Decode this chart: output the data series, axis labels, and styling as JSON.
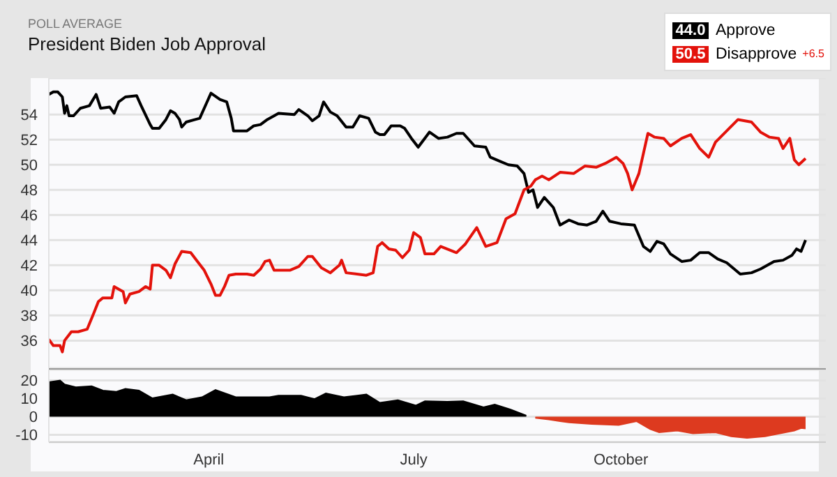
{
  "chart_data": [
    {
      "type": "line",
      "title": "President Biden Job Approval",
      "subtitle": "POLL AVERAGE",
      "legend": "top right",
      "grid": "y",
      "tick_labels": "y",
      "xlim": [
        "--01-20",
        "--12-31"
      ],
      "ylim": [
        33.8,
        56.9
      ],
      "yticks": [
        36,
        38,
        40,
        42,
        44,
        46,
        48,
        50,
        52,
        54
      ],
      "annotations": [
        "44.0",
        "50.5",
        "+6.5"
      ],
      "series": [
        {
          "name": "Approve",
          "color": "#000000",
          "x": [
            "--01-20",
            "--01-22",
            "--01-24",
            "--01-26",
            "--01-27",
            "--01-28",
            "--01-29",
            "--01-31",
            "--02-03",
            "--02-07",
            "--02-10",
            "--02-12",
            "--02-16",
            "--02-18",
            "--02-20",
            "--02-23",
            "--02-28",
            "--03-02",
            "--03-06",
            "--03-07",
            "--03-10",
            "--03-13",
            "--03-15",
            "--03-17",
            "--03-19",
            "--03-20",
            "--03-22",
            "--03-26",
            "--03-28",
            "--03-31",
            "--04-02",
            "--04-06",
            "--04-09",
            "--04-11",
            "--04-12",
            "--04-18",
            "--04-21",
            "--04-24",
            "--04-27",
            "--05-02",
            "--05-09",
            "--05-11",
            "--05-15",
            "--05-17",
            "--05-20",
            "--05-22",
            "--05-25",
            "--05-28",
            "--06-01",
            "--06-04",
            "--06-07",
            "--06-11",
            "--06-14",
            "--06-16",
            "--06-18",
            "--06-21",
            "--06-25",
            "--06-27",
            "--06-30",
            "--07-03",
            "--07-08",
            "--07-12",
            "--07-16",
            "--07-20",
            "--07-23",
            "--07-28",
            "--08-02",
            "--08-04",
            "--08-08",
            "--08-12",
            "--08-16",
            "--08-19",
            "--08-21",
            "--08-23",
            "--08-25",
            "--08-28",
            "--09-01",
            "--09-04",
            "--09-08",
            "--09-12",
            "--09-16",
            "--09-20",
            "--09-23",
            "--09-26",
            "--10-01",
            "--10-07",
            "--10-11",
            "--10-14",
            "--10-17",
            "--10-20",
            "--10-23",
            "--10-28",
            "--11-01",
            "--11-05",
            "--11-09",
            "--11-13",
            "--11-17",
            "--11-23",
            "--11-28",
            "--12-02",
            "--12-08",
            "--12-12",
            "--12-16",
            "--12-18",
            "--12-20",
            "--12-22"
          ],
          "values": [
            55.6,
            55.8,
            55.8,
            55.4,
            54.1,
            54.7,
            53.9,
            53.9,
            54.5,
            54.7,
            55.6,
            54.5,
            54.6,
            54.1,
            55.0,
            55.4,
            55.5,
            54.7,
            53.2,
            52.9,
            52.9,
            53.6,
            54.3,
            54.1,
            53.6,
            53.0,
            53.4,
            53.6,
            53.7,
            54.9,
            55.7,
            55.2,
            55.0,
            53.7,
            52.7,
            52.7,
            53.1,
            53.2,
            53.6,
            54.1,
            54.0,
            54.4,
            53.9,
            53.5,
            53.9,
            55.0,
            54.2,
            53.9,
            53.0,
            53.0,
            53.9,
            53.7,
            52.6,
            52.4,
            52.4,
            53.1,
            53.1,
            52.9,
            52.1,
            51.4,
            52.6,
            52.1,
            52.2,
            52.5,
            52.5,
            51.5,
            51.4,
            50.6,
            50.3,
            50.0,
            49.9,
            49.3,
            47.8,
            48.0,
            46.6,
            47.4,
            46.6,
            45.2,
            45.6,
            45.3,
            45.2,
            45.5,
            46.3,
            45.5,
            45.3,
            45.2,
            43.5,
            43.1,
            43.9,
            43.7,
            42.9,
            42.3,
            42.4,
            43.0,
            43.0,
            42.5,
            42.2,
            41.3,
            41.4,
            41.7,
            42.3,
            42.4,
            42.8,
            43.3,
            43.1,
            44.0
          ]
        },
        {
          "name": "Disapprove",
          "color": "#e3120b",
          "x": [
            "--01-20",
            "--01-22",
            "--01-25",
            "--01-26",
            "--01-27",
            "--01-30",
            "--02-02",
            "--02-06",
            "--02-09",
            "--02-11",
            "--02-13",
            "--02-17",
            "--02-18",
            "--02-22",
            "--02-23",
            "--02-25",
            "--03-01",
            "--03-04",
            "--03-06",
            "--03-07",
            "--03-10",
            "--03-13",
            "--03-15",
            "--03-17",
            "--03-20",
            "--03-24",
            "--03-27",
            "--03-30",
            "--04-02",
            "--04-04",
            "--04-06",
            "--04-08",
            "--04-10",
            "--04-13",
            "--04-18",
            "--04-21",
            "--04-24",
            "--04-26",
            "--04-28",
            "--04-30",
            "--05-07",
            "--05-11",
            "--05-15",
            "--05-17",
            "--05-21",
            "--05-25",
            "--05-29",
            "--05-30",
            "--06-01",
            "--06-10",
            "--06-13",
            "--06-15",
            "--06-17",
            "--06-20",
            "--06-23",
            "--06-26",
            "--06-29",
            "--07-01",
            "--07-04",
            "--07-06",
            "--07-10",
            "--07-13",
            "--07-20",
            "--07-24",
            "--07-29",
            "--08-02",
            "--08-07",
            "--08-11",
            "--08-15",
            "--08-19",
            "--08-22",
            "--08-24",
            "--08-27",
            "--08-30",
            "--09-04",
            "--09-10",
            "--09-15",
            "--09-20",
            "--09-24",
            "--09-29",
            "--10-02",
            "--10-04",
            "--10-06",
            "--10-09",
            "--10-13",
            "--10-16",
            "--10-20",
            "--10-23",
            "--10-28",
            "--11-01",
            "--11-05",
            "--11-09",
            "--11-12",
            "--11-17",
            "--11-22",
            "--11-28",
            "--12-02",
            "--12-06",
            "--12-10",
            "--12-12",
            "--12-15",
            "--12-17",
            "--12-19",
            "--12-22"
          ],
          "values": [
            36.1,
            35.6,
            35.6,
            35.1,
            36.0,
            36.7,
            36.7,
            36.9,
            38.2,
            39.1,
            39.4,
            39.4,
            40.3,
            39.9,
            39.0,
            39.7,
            39.9,
            40.3,
            40.1,
            42.0,
            42.0,
            41.6,
            41.0,
            42.1,
            43.1,
            43.0,
            42.3,
            41.6,
            40.5,
            39.6,
            39.6,
            40.3,
            41.2,
            41.3,
            41.3,
            41.2,
            41.7,
            42.3,
            42.4,
            41.6,
            41.6,
            41.9,
            42.7,
            42.7,
            41.8,
            41.4,
            42.0,
            42.4,
            41.4,
            41.2,
            41.4,
            43.5,
            43.8,
            43.3,
            43.2,
            42.6,
            43.2,
            44.6,
            44.2,
            42.9,
            42.9,
            43.5,
            43.0,
            43.7,
            45.0,
            43.5,
            43.8,
            45.7,
            46.1,
            48.0,
            48.3,
            48.8,
            49.1,
            48.8,
            49.4,
            49.3,
            49.9,
            49.8,
            50.1,
            50.6,
            50.1,
            49.3,
            48.0,
            49.3,
            52.5,
            52.2,
            52.1,
            51.5,
            52.1,
            52.4,
            51.3,
            50.6,
            51.8,
            52.7,
            53.6,
            53.4,
            52.6,
            52.2,
            52.1,
            51.3,
            52.1,
            50.4,
            50.0,
            50.5
          ]
        }
      ]
    },
    {
      "type": "area",
      "grid": "y",
      "xlim": [
        "--01-20",
        "--12-31"
      ],
      "ylim": [
        -14,
        26
      ],
      "yticks": [
        -10,
        0,
        10,
        20
      ],
      "xticks": [
        {
          "value": "--04-01",
          "label": "April"
        },
        {
          "value": "--07-01",
          "label": "July"
        },
        {
          "value": "--10-01",
          "label": "October"
        }
      ],
      "series": [
        {
          "color": "#000000",
          "x": [
            "--01-20",
            "--01-25",
            "--01-27",
            "--02-01",
            "--02-08",
            "--02-13",
            "--02-19",
            "--02-23",
            "--03-01",
            "--03-07",
            "--03-16",
            "--03-22",
            "--03-29",
            "--04-04",
            "--04-13",
            "--04-28",
            "--05-02",
            "--05-12",
            "--05-18",
            "--05-23",
            "--05-31",
            "--06-10",
            "--06-16",
            "--06-24",
            "--07-02",
            "--07-06",
            "--07-16",
            "--07-23",
            "--08-01",
            "--08-06",
            "--08-13",
            "--08-20"
          ],
          "values": [
            19.1,
            20,
            17.8,
            16.3,
            16.9,
            14.5,
            13.8,
            15.4,
            14.5,
            10.2,
            12.3,
            9.2,
            10.8,
            14.8,
            10.8,
            10.8,
            11.7,
            11.7,
            9.8,
            12.9,
            10.8,
            12.3,
            7.7,
            9.2,
            6.2,
            8.6,
            8.3,
            8.6,
            5.2,
            6.8,
            4.0,
            0.6
          ]
        },
        {
          "color": "#dd3a1f",
          "x": [
            "--08-24",
            "--08-30",
            "--09-04",
            "--09-08",
            "--09-18",
            "--09-30",
            "--10-08",
            "--10-14",
            "--10-18",
            "--10-26",
            "--11-02",
            "--11-12",
            "--11-19",
            "--11-26",
            "--12-04",
            "--12-13",
            "--12-17",
            "--12-20",
            "--12-22"
          ],
          "values": [
            -0.6,
            -1.5,
            -2.5,
            -3.1,
            -4.0,
            -4.6,
            -2.5,
            -6.8,
            -8.6,
            -7.7,
            -9.2,
            -8.6,
            -10.8,
            -11.7,
            -10.8,
            -8.6,
            -7.7,
            -6.2,
            -6.5
          ]
        }
      ]
    }
  ]
}
